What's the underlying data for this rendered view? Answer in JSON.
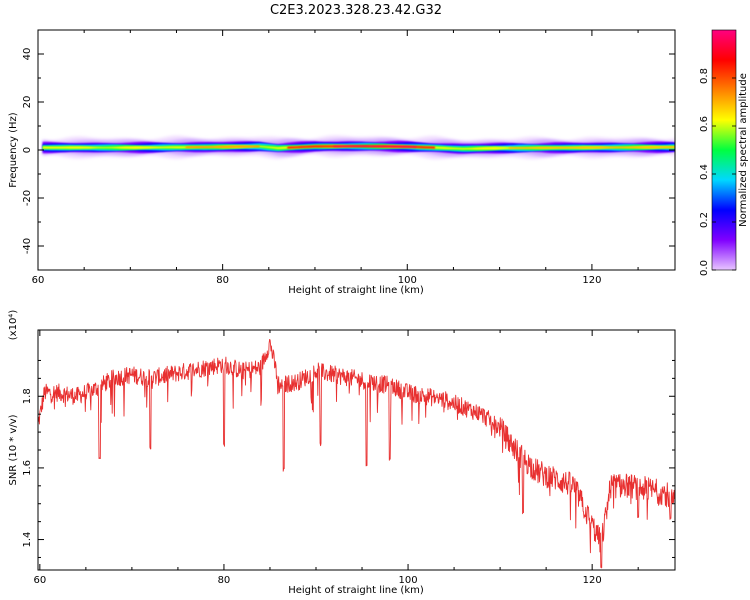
{
  "figure_title": "C2E3.2023.328.23.42.G32",
  "chart_data": [
    {
      "type": "heatmap",
      "title": "",
      "xlabel": "Height of straight line (km)",
      "ylabel": "Frequency (Hz)",
      "xlim": [
        60,
        129
      ],
      "ylim": [
        -50,
        50
      ],
      "x_ticks": [
        60,
        80,
        100,
        120
      ],
      "y_ticks": [
        -40,
        -20,
        0,
        20,
        40
      ],
      "band_center_hz": [
        [
          60.5,
          1.0
        ],
        [
          70,
          1.0
        ],
        [
          78,
          1.2
        ],
        [
          84,
          1.5
        ],
        [
          86,
          0.8
        ],
        [
          90,
          1.5
        ],
        [
          95,
          1.6
        ],
        [
          100,
          1.4
        ],
        [
          103,
          1.0
        ],
        [
          106,
          0.5
        ],
        [
          110,
          0.8
        ],
        [
          120,
          1.0
        ],
        [
          129,
          1.2
        ]
      ],
      "colorbar": {
        "label": "Normalized spectral amplitude",
        "range": [
          0,
          1
        ],
        "ticks": [
          0.0,
          0.2,
          0.4,
          0.6,
          0.8
        ],
        "colors": [
          "#e8c6ff",
          "#8000ff",
          "#0000ff",
          "#00d8ff",
          "#00ff40",
          "#ffff00",
          "#ff8000",
          "#ff0000",
          "#ff0080"
        ]
      }
    },
    {
      "type": "line",
      "title": "",
      "xlabel": "Height of straight line (km)",
      "ylabel": "SNR (10 * v/v)",
      "y_multiplier": "(x10⁴)",
      "xlim": [
        59.8,
        129
      ],
      "ylim": [
        1.315,
        1.985
      ],
      "x_ticks": [
        60,
        80,
        100,
        120
      ],
      "y_ticks": [
        1.4,
        1.6,
        1.8
      ],
      "line_color": "#e83030",
      "trend": [
        [
          59.8,
          1.72
        ],
        [
          60.5,
          1.81
        ],
        [
          62,
          1.81
        ],
        [
          64,
          1.8
        ],
        [
          66,
          1.82
        ],
        [
          68,
          1.85
        ],
        [
          70,
          1.86
        ],
        [
          72,
          1.85
        ],
        [
          74,
          1.86
        ],
        [
          76,
          1.87
        ],
        [
          78,
          1.88
        ],
        [
          80,
          1.89
        ],
        [
          82,
          1.87
        ],
        [
          84,
          1.88
        ],
        [
          85,
          1.95
        ],
        [
          86,
          1.83
        ],
        [
          88,
          1.84
        ],
        [
          90,
          1.87
        ],
        [
          92,
          1.86
        ],
        [
          94,
          1.85
        ],
        [
          96,
          1.84
        ],
        [
          98,
          1.83
        ],
        [
          100,
          1.81
        ],
        [
          102,
          1.8
        ],
        [
          104,
          1.79
        ],
        [
          106,
          1.77
        ],
        [
          108,
          1.75
        ],
        [
          110,
          1.71
        ],
        [
          112,
          1.64
        ],
        [
          114,
          1.59
        ],
        [
          116,
          1.57
        ],
        [
          118,
          1.55
        ],
        [
          120,
          1.44
        ],
        [
          121,
          1.39
        ],
        [
          122,
          1.55
        ],
        [
          124,
          1.55
        ],
        [
          126,
          1.54
        ],
        [
          128,
          1.53
        ],
        [
          129,
          1.5
        ]
      ],
      "dips": [
        [
          66.5,
          1.62
        ],
        [
          72,
          1.65
        ],
        [
          80,
          1.66
        ],
        [
          86.5,
          1.59
        ],
        [
          90.5,
          1.66
        ],
        [
          95.5,
          1.6
        ],
        [
          98,
          1.62
        ],
        [
          112.5,
          1.47
        ],
        [
          121,
          1.32
        ],
        [
          125,
          1.46
        ],
        [
          128.5,
          1.45
        ]
      ]
    }
  ]
}
